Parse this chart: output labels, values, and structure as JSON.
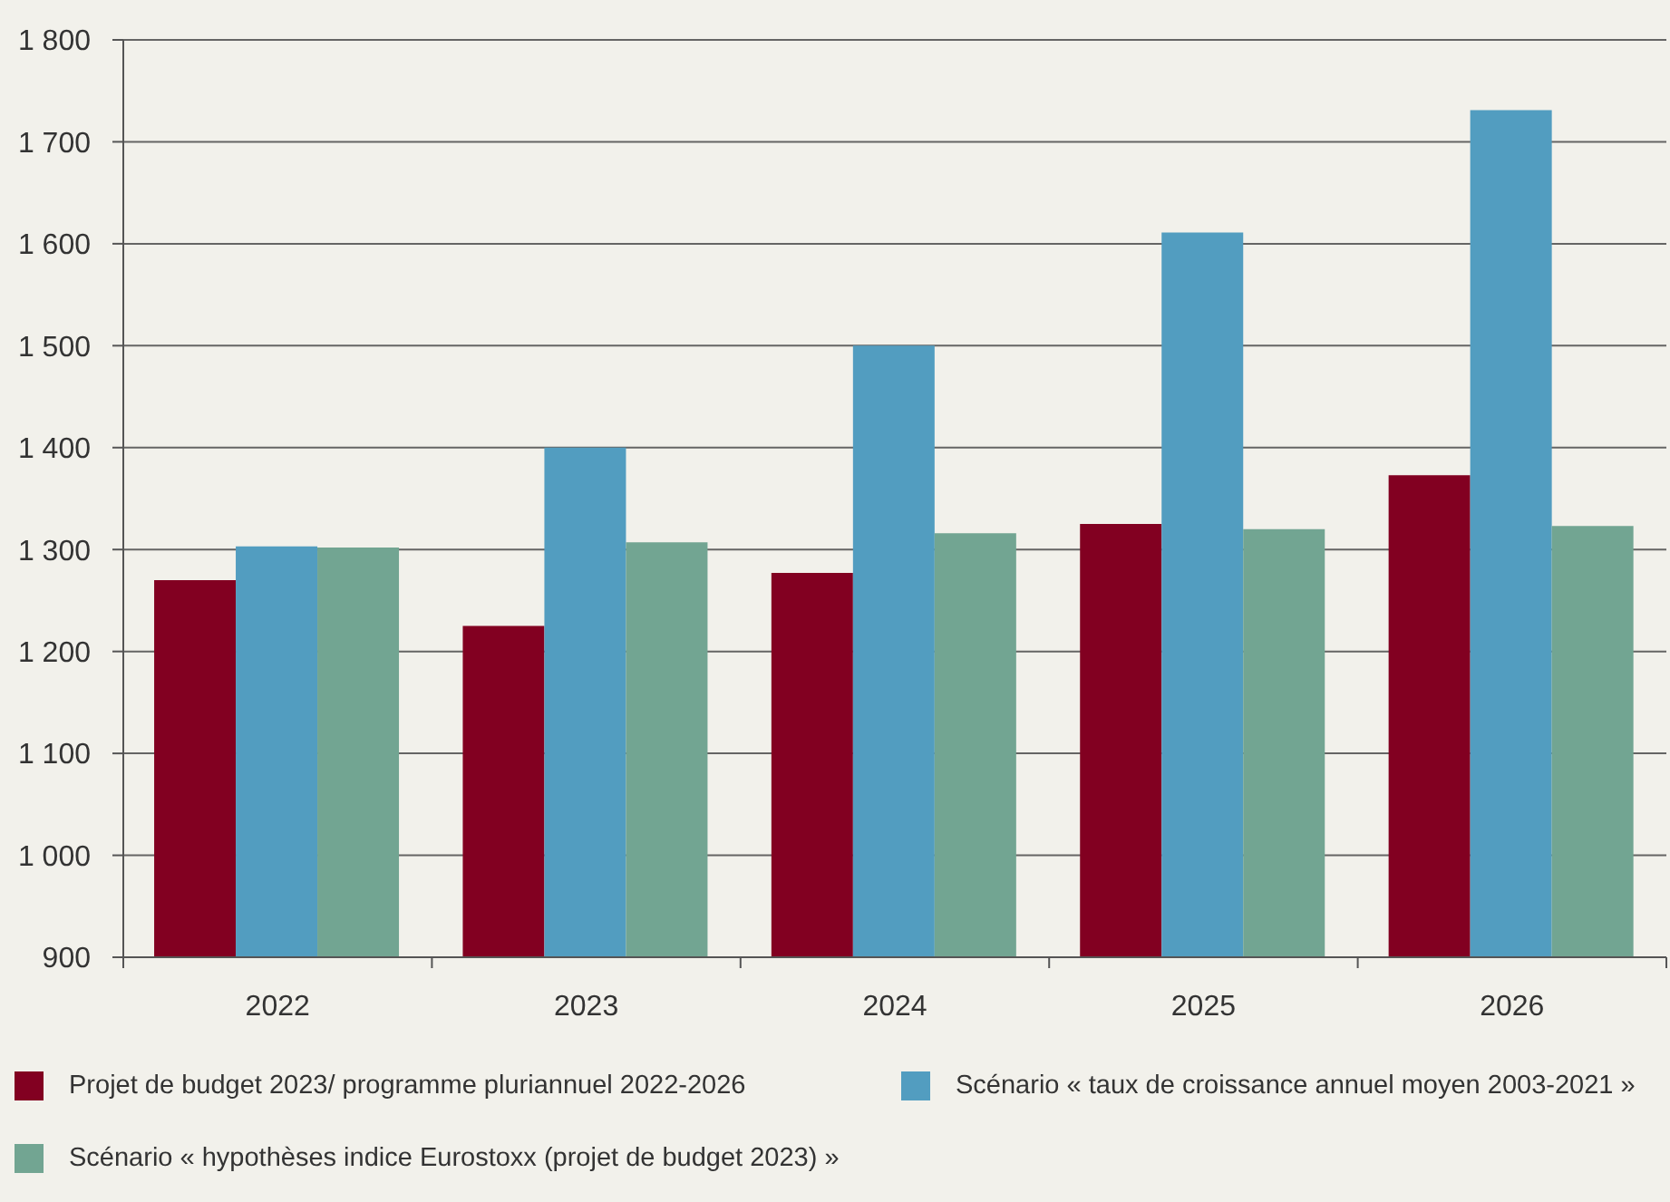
{
  "chart_data": {
    "type": "bar",
    "categories": [
      "2022",
      "2023",
      "2024",
      "2025",
      "2026"
    ],
    "series": [
      {
        "name": "Projet de budget 2023/ programme pluriannuel 2022-2026",
        "color": "#820021",
        "values": [
          1270,
          1225,
          1277,
          1325,
          1373
        ]
      },
      {
        "name": "Scénario « taux de croissance annuel moyen 2003-2021 »",
        "color": "#529dc0",
        "values": [
          1303,
          1400,
          1500,
          1611,
          1731
        ]
      },
      {
        "name": "Scénario « hypothèses indice Eurostoxx (projet de budget 2023) »",
        "color": "#72a592",
        "values": [
          1302,
          1307,
          1316,
          1320,
          1323
        ]
      }
    ],
    "ylim": [
      900,
      1800
    ],
    "yticks": [
      900,
      {
        "value": 1000,
        "label": "1 000"
      },
      {
        "value": 1100,
        "label": "1 100"
      },
      {
        "value": 1200,
        "label": "1 200"
      },
      {
        "value": 1300,
        "label": "1 300"
      },
      {
        "value": 1400,
        "label": "1 400"
      },
      {
        "value": 1500,
        "label": "1 500"
      },
      {
        "value": 1600,
        "label": "1 600"
      },
      {
        "value": 1700,
        "label": "1 700"
      },
      {
        "value": 1800,
        "label": "1 800"
      }
    ],
    "grid": "y",
    "legend": "bottom"
  }
}
